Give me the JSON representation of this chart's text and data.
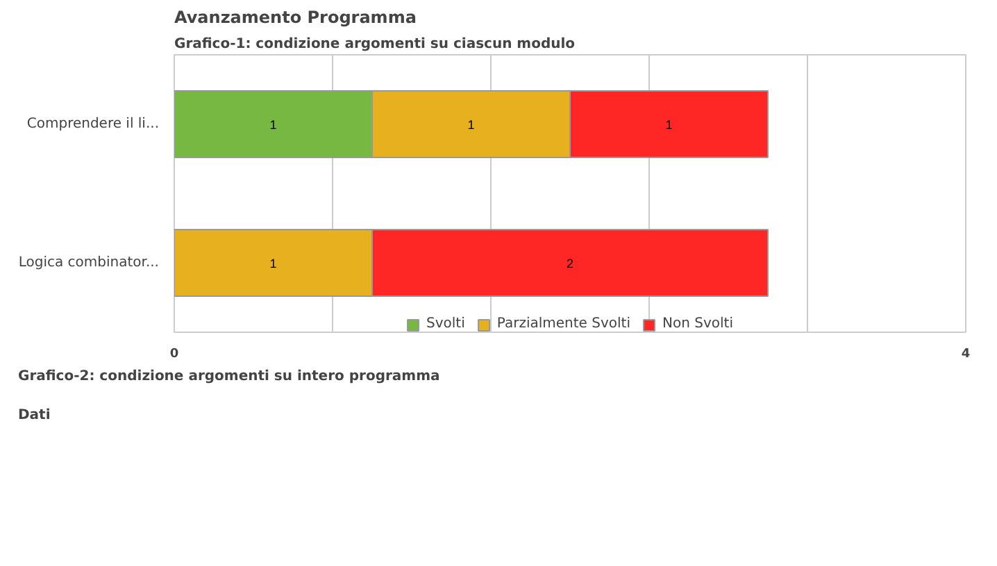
{
  "chart_data": {
    "type": "bar",
    "orientation": "horizontal",
    "stacked": true,
    "title": "Avanzamento Programma",
    "subtitle": "Grafico-1: condizione argomenti su ciascun modulo",
    "categories": [
      "Comprendere il li...",
      "Logica combinator..."
    ],
    "series": [
      {
        "name": "Svolti",
        "color": "#77b843",
        "values": [
          1,
          null
        ]
      },
      {
        "name": "Parzialmente Svolti",
        "color": "#e6b01f",
        "values": [
          1,
          1
        ]
      },
      {
        "name": "Non Svolti",
        "color": "#fe2725",
        "values": [
          1,
          2
        ]
      }
    ],
    "xlim": [
      0,
      4
    ],
    "xticks": [
      0,
      {
        "value": 0.8,
        "label": null
      },
      {
        "value": 1.6,
        "label": null
      },
      {
        "value": 2.4,
        "label": null
      },
      {
        "value": 3.2,
        "label": null
      },
      4
    ],
    "grid": "x",
    "legend": "bottom",
    "data_labels": true,
    "annotations": [
      "Grafico-2: condizione argomenti su intero programma",
      "Dati"
    ]
  }
}
